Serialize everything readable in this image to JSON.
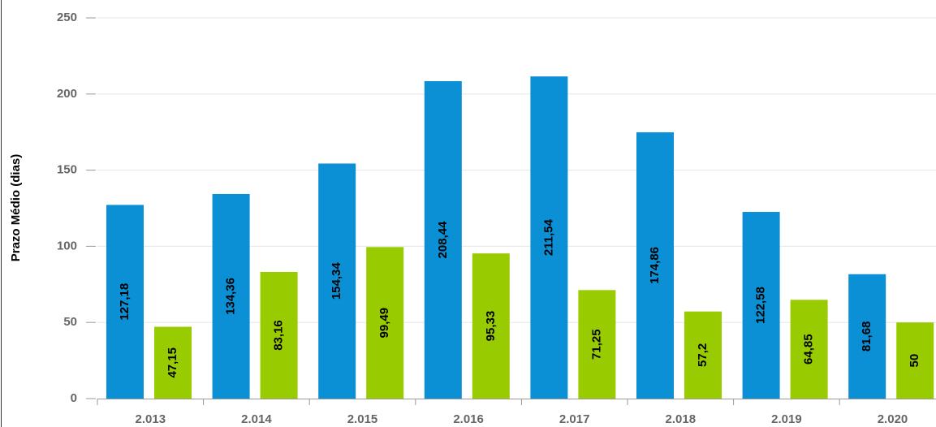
{
  "chart_data": {
    "type": "bar",
    "y_axis_label": "Prazo Médio (dias)",
    "categories": [
      "2.013",
      "2.014",
      "2.015",
      "2.016",
      "2.017",
      "2.018",
      "2.019",
      "2.020"
    ],
    "series": [
      {
        "color": "#0b8fd5",
        "values": [
          127.18,
          134.36,
          154.34,
          208.44,
          211.54,
          174.86,
          122.58,
          81.68
        ],
        "value_labels": [
          "127,18",
          "134,36",
          "154,34",
          "208,44",
          "211,54",
          "174,86",
          "122,58",
          "81,68"
        ]
      },
      {
        "color": "#99cc00",
        "values": [
          47.15,
          83.16,
          99.49,
          95.33,
          71.25,
          57.2,
          64.85,
          50
        ],
        "value_labels": [
          "47,15",
          "83,16",
          "99,49",
          "95,33",
          "71,25",
          "57,2",
          "64,85",
          "50"
        ]
      }
    ],
    "ylim": [
      0,
      250
    ],
    "yticks": [
      0,
      50,
      100,
      150,
      200,
      250
    ],
    "grid": true
  }
}
